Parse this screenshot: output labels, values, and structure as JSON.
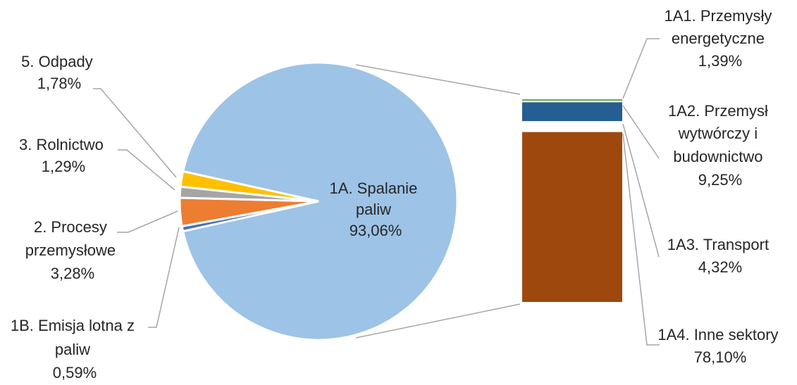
{
  "chart_data": {
    "type": "pie",
    "variant": "bar-of-pie",
    "pie": {
      "slices": [
        {
          "label": "1A. Spalanie paliw",
          "line1": "1A. Spalanie",
          "line2": "paliw",
          "value_text": "93,06%",
          "value": 93.06,
          "color": "#9dc3e6"
        },
        {
          "label": "1B. Emisja lotna z paliw",
          "line1": "1B. Emisja lotna z",
          "line2": "paliw",
          "value_text": "0,59%",
          "value": 0.59,
          "color": "#4472c4"
        },
        {
          "label": "2. Procesy przemysłowe",
          "line1": "2. Procesy",
          "line2": "przemysłowe",
          "value_text": "3,28%",
          "value": 3.28,
          "color": "#ed7d31"
        },
        {
          "label": "3. Rolnictwo",
          "line1": "3. Rolnictwo",
          "line2": "",
          "value_text": "1,29%",
          "value": 1.29,
          "color": "#a5a5a5"
        },
        {
          "label": "5. Odpady",
          "line1": "5. Odpady",
          "line2": "",
          "value_text": "1,78%",
          "value": 1.78,
          "color": "#ffc000"
        }
      ]
    },
    "bar": {
      "segments": [
        {
          "label": "1A1. Przemysły energetyczne",
          "line1": "1A1. Przemysły",
          "line2": "energetyczne",
          "line3": "",
          "value_text": "1,39%",
          "value": 1.39,
          "color": "#70ad47"
        },
        {
          "label": "1A2. Przemysł wytwórczy i budownictwo",
          "line1": "1A2. Przemysł",
          "line2": "wytwórczy i",
          "line3": "budownictwo",
          "value_text": "9,25%",
          "value": 9.25,
          "color": "#255e91"
        },
        {
          "label": "1A3. Transport",
          "line1": "1A3. Transport",
          "line2": "",
          "line3": "",
          "value_text": "4,32%",
          "value": 4.32,
          "color": "#ffffff"
        },
        {
          "label": "1A4. Inne sektory",
          "line1": "1A4. Inne sektory",
          "line2": "",
          "line3": "",
          "value_text": "78,10%",
          "value": 78.1,
          "color": "#9e480e"
        }
      ]
    }
  }
}
